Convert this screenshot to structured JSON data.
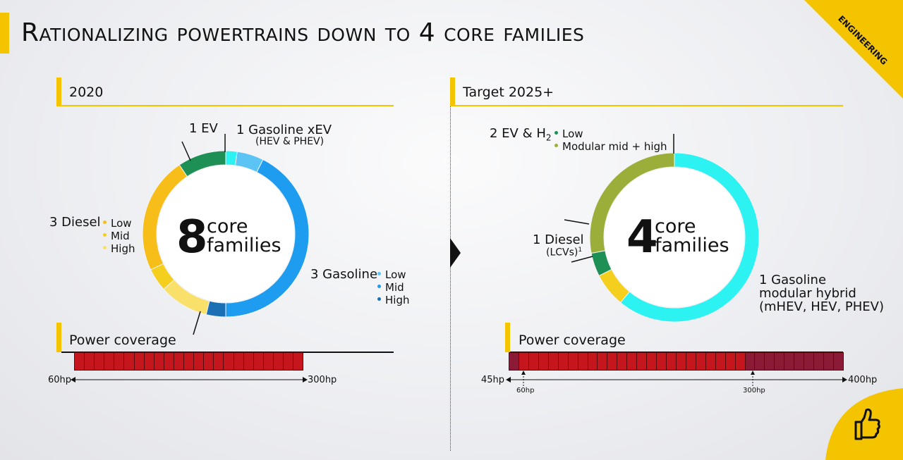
{
  "title": "Rationalizing powertrains down to 4 core families",
  "tag": "ENGINEERING",
  "left": {
    "section": "2020",
    "count": "8",
    "core": "core",
    "families": "families",
    "ev_label": "1 EV",
    "gxev_label": "1 Gasoline xEV",
    "gxev_sub": "(HEV & PHEV)",
    "diesel_label": "3 Diesel",
    "diesel_legend": [
      "Low",
      "Mid",
      "High"
    ],
    "gasoline_label": "3 Gasoline",
    "gasoline_legend": [
      "Low",
      "Mid",
      "High"
    ],
    "power_label": "Power coverage",
    "hp_min": "60hp",
    "hp_max": "300hp"
  },
  "right": {
    "section": "Target 2025+",
    "count": "4",
    "core": "core",
    "families": "families",
    "ev_label": "2 EV & H",
    "ev_sub": "2",
    "ev_legend": [
      "Low",
      "Modular mid + high"
    ],
    "diesel_label": "1 Diesel",
    "diesel_sub": "(LCVs)",
    "diesel_note": "1",
    "gasoline_label": [
      "1 Gasoline",
      "modular hybrid",
      "(mHEV, HEV, PHEV)"
    ],
    "power_label": "Power coverage",
    "hp_min": "45hp",
    "hp_max": "400hp",
    "hp_mark1": "60hp",
    "hp_mark2": "300hp"
  },
  "colors": {
    "accent": "#f5c400",
    "ev_green": "#1e8f55",
    "olive": "#9cae3a",
    "cyan": "#2cf2f2",
    "light_blue": "#5cc4f5",
    "blue": "#1e9cf0",
    "dark_blue": "#1a6fb5",
    "yellow": "#f7be1a",
    "yellow_mid": "#f5cf1e",
    "yellow_light": "#f8e06a",
    "bar_red": "#c4161c",
    "bar_dark": "#8a1a35"
  },
  "chart_data": [
    {
      "type": "pie",
      "name": "2020",
      "segments": [
        {
          "label": "Gasoline xEV",
          "value": 2.2
        },
        {
          "label": "Gasoline xEV light",
          "value": 5.2
        },
        {
          "label": "Gasoline Mid",
          "value": 42.6
        },
        {
          "label": "Gasoline High",
          "value": 3.8
        },
        {
          "label": "Diesel High",
          "value": 9.6
        },
        {
          "label": "Diesel Mid",
          "value": 4.5
        },
        {
          "label": "Diesel Low",
          "value": 22.7
        },
        {
          "label": "EV",
          "value": 9.4
        }
      ]
    },
    {
      "type": "pie",
      "name": "Target 2025+",
      "segments": [
        {
          "label": "Gasoline modular hybrid",
          "value": 61.0
        },
        {
          "label": "Diesel (LCVs)",
          "value": 6.5
        },
        {
          "label": "EV Low",
          "value": 4.5
        },
        {
          "label": "EV Modular mid + high",
          "value": 28.0
        }
      ]
    },
    {
      "type": "bar",
      "name": "Power coverage 2020",
      "range_hp": [
        60,
        300
      ],
      "segments": 23
    },
    {
      "type": "bar",
      "name": "Power coverage 2025+",
      "range_hp": [
        45,
        400
      ],
      "highlight_range_hp": [
        60,
        300
      ],
      "segments": 34
    }
  ]
}
